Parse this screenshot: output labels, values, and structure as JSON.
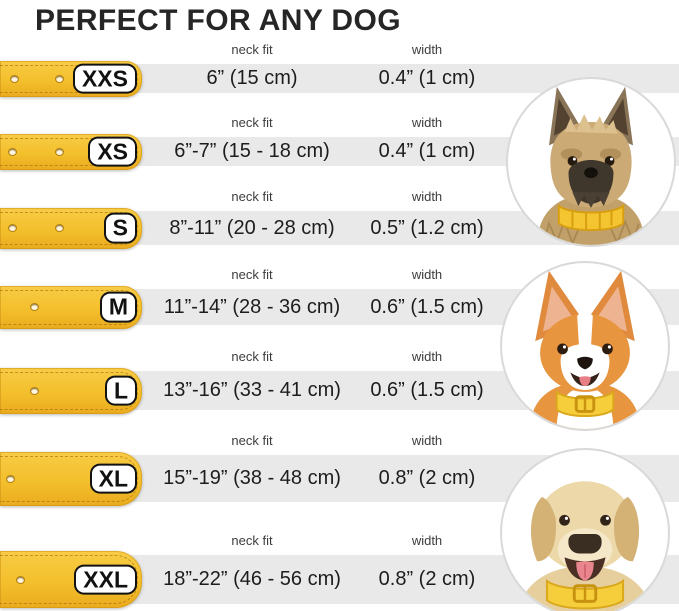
{
  "title": "PERFECT FOR ANY DOG",
  "columns": {
    "neck_fit": "neck fit",
    "width": "width"
  },
  "sizes": [
    {
      "label": "XXS",
      "neck_fit": "6” (15 cm)",
      "width": "0.4” (1 cm)"
    },
    {
      "label": "XS",
      "neck_fit": "6”-7” (15 - 18 cm)",
      "width": "0.4” (1 cm)"
    },
    {
      "label": "S",
      "neck_fit": "8”-11” (20 - 28 cm)",
      "width": "0.5” (1.2 cm)"
    },
    {
      "label": "M",
      "neck_fit": "11”-14” (28 - 36 cm)",
      "width": "0.6” (1.5 cm)"
    },
    {
      "label": "L",
      "neck_fit": "13”-16” (33 - 41 cm)",
      "width": "0.6” (1.5 cm)"
    },
    {
      "label": "XL",
      "neck_fit": "15”-19” (38 - 48 cm)",
      "width": "0.8” (2 cm)"
    },
    {
      "label": "XXL",
      "neck_fit": "18”-22” (46 - 56 cm)",
      "width": "0.8” (2 cm)"
    }
  ],
  "photos": [
    {
      "name": "terrier-photo",
      "subject": "scruffy tan terrier puppy wearing yellow collar"
    },
    {
      "name": "corgi-photo",
      "subject": "orange and white corgi wearing yellow collar"
    },
    {
      "name": "labrador-photo",
      "subject": "yellow labrador wearing yellow collar"
    }
  ],
  "colors": {
    "title": "#262626",
    "label": "#3d3d3d",
    "value": "#1d1d1d",
    "band": "#e9e9e9",
    "strap": "#f3bf2c",
    "strapEdge": "#d79e12",
    "pillBg": "#ffffff",
    "pillBorder": "#121212",
    "circleBorder": "#d9d9d9",
    "collarYellow": "#f4c531"
  }
}
